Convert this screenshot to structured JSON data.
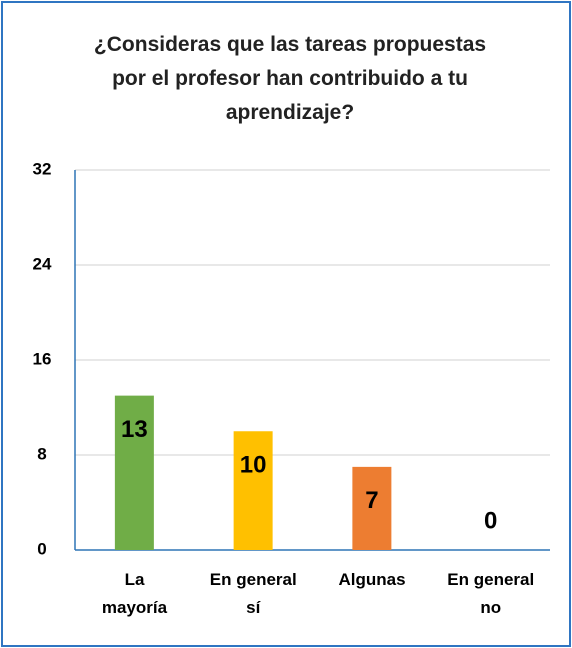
{
  "chart_data": {
    "type": "bar",
    "title": "¿Consideras que las tareas propuestas por el profesor han contribuido a tu aprendizaje?",
    "categories": [
      "La\nmayoría",
      "En general\nsí",
      "Algunas",
      "En general\nno"
    ],
    "values": [
      13,
      10,
      7,
      0
    ],
    "colors": [
      "#70ad47",
      "#ffc000",
      "#ed7d31",
      "#4472c4"
    ],
    "ylim": [
      0,
      32
    ],
    "yticks": [
      0,
      8,
      16,
      24,
      32
    ],
    "grid": true
  }
}
